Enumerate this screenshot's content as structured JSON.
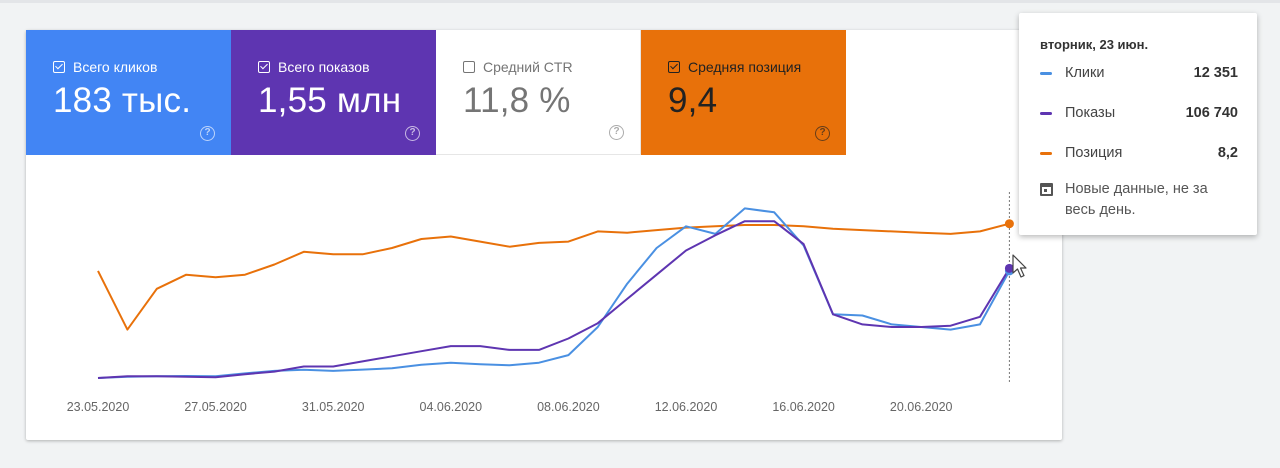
{
  "metrics": [
    {
      "key": "clicks",
      "label": "Всего кликов",
      "value": "183 тыс.",
      "checked": true,
      "color": "#4285f4"
    },
    {
      "key": "impressions",
      "label": "Всего показов",
      "value": "1,55 млн",
      "checked": true,
      "color": "#5e35b1"
    },
    {
      "key": "ctr",
      "label": "Средний CTR",
      "value": "11,8 %",
      "checked": false,
      "color": "#ffffff"
    },
    {
      "key": "position",
      "label": "Средняя позиция",
      "value": "9,4",
      "checked": true,
      "color": "#e8710a"
    }
  ],
  "help_icon": "help-circle-icon",
  "tooltip": {
    "date": "вторник, 23 июн.",
    "rows": [
      {
        "name": "Клики",
        "value": "12 351",
        "color": "#4a90e2"
      },
      {
        "name": "Показы",
        "value": "106 740",
        "color": "#5e35b1"
      },
      {
        "name": "Позиция",
        "value": "8,2",
        "color": "#e8710a"
      }
    ],
    "note": "Новые данные, не за весь день.",
    "note_icon": "calendar-icon"
  },
  "chart_data": {
    "type": "line",
    "x": [
      "23.05.2020",
      "24.05.2020",
      "25.05.2020",
      "26.05.2020",
      "27.05.2020",
      "28.05.2020",
      "29.05.2020",
      "30.05.2020",
      "31.05.2020",
      "01.06.2020",
      "02.06.2020",
      "03.06.2020",
      "04.06.2020",
      "05.06.2020",
      "06.06.2020",
      "07.06.2020",
      "08.06.2020",
      "09.06.2020",
      "10.06.2020",
      "11.06.2020",
      "12.06.2020",
      "13.06.2020",
      "14.06.2020",
      "15.06.2020",
      "16.06.2020",
      "17.06.2020",
      "18.06.2020",
      "19.06.2020",
      "20.06.2020",
      "21.06.2020",
      "22.06.2020",
      "23.06.2020"
    ],
    "tick_labels": [
      "23.05.2020",
      "27.05.2020",
      "31.05.2020",
      "04.06.2020",
      "08.06.2020",
      "12.06.2020",
      "16.06.2020",
      "20.06.2020"
    ],
    "series": [
      {
        "name": "Клики",
        "color": "#4a90e2",
        "values": [
          0.0,
          0.5,
          0.7,
          0.8,
          0.7,
          1.8,
          2.8,
          3.2,
          2.8,
          3.3,
          3.8,
          5.2,
          6.0,
          5.4,
          5.0,
          6.0,
          9.0,
          20.0,
          37.0,
          51.0,
          59.5,
          56.5,
          66.5,
          65.0,
          52.0,
          25.0,
          24.5,
          21.0,
          20.0,
          19.0,
          21.0,
          42.0
        ]
      },
      {
        "name": "Показы",
        "color": "#5e35b1",
        "values": [
          0.0,
          0.7,
          0.7,
          0.5,
          0.3,
          1.5,
          2.5,
          4.5,
          4.5,
          6.5,
          8.5,
          10.5,
          12.5,
          12.5,
          11.0,
          11.0,
          15.5,
          21.5,
          31.0,
          40.5,
          50.0,
          56.0,
          61.5,
          61.5,
          52.5,
          25.0,
          21.0,
          20.0,
          20.0,
          20.5,
          24.0,
          43.0
        ]
      },
      {
        "name": "Позиция",
        "color": "#e8710a",
        "values": [
          42.0,
          19.0,
          35.0,
          40.5,
          39.5,
          40.5,
          44.5,
          49.5,
          48.5,
          48.5,
          51.0,
          54.5,
          55.5,
          53.5,
          51.5,
          53.0,
          53.5,
          57.5,
          57.0,
          58.0,
          59.0,
          59.5,
          60.0,
          60.0,
          59.5,
          58.5,
          58.0,
          57.5,
          57.0,
          56.5,
          57.5,
          60.5
        ]
      }
    ],
    "grid": false,
    "legend": "none"
  }
}
